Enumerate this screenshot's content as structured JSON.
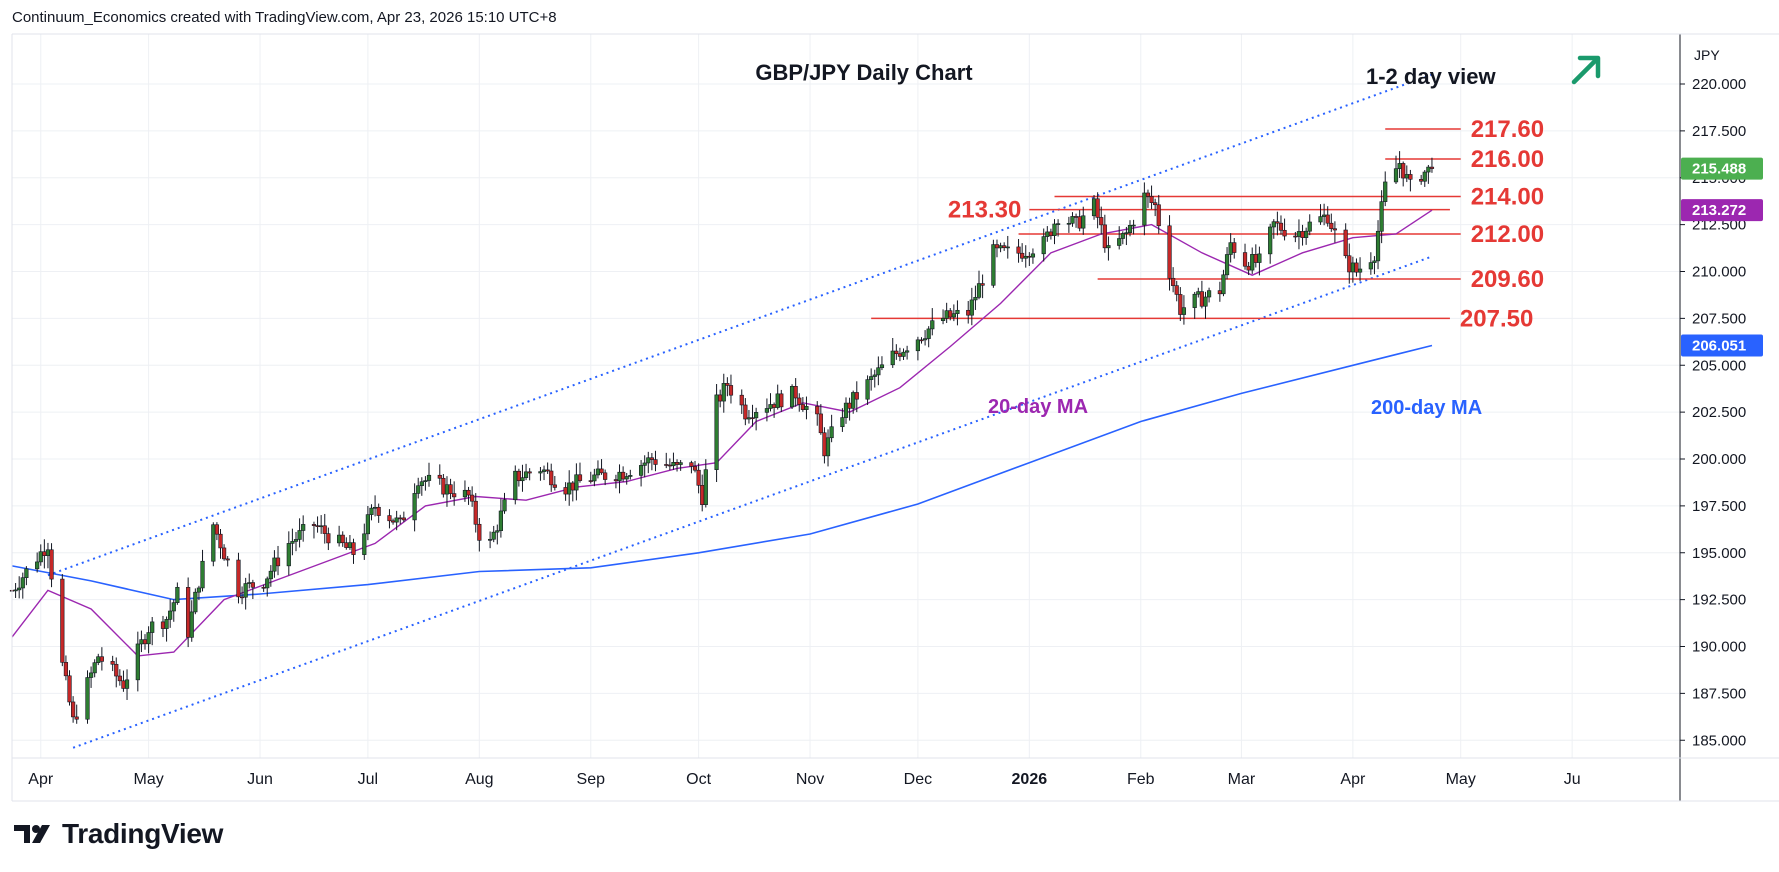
{
  "header": {
    "caption": "Continuum_Economics created with TradingView.com, Apr 23, 2026 15:10 UTC+8"
  },
  "brand": {
    "name": "TradingView"
  },
  "chart_data": {
    "type": "candlestick",
    "title": "GBP/JPY Daily Chart",
    "view_label": "1-2 day view",
    "view_direction": "up",
    "currency_label": "JPY",
    "ylim": [
      184,
      222
    ],
    "y_ticks": [
      "220.000",
      "217.500",
      "215.000",
      "212.500",
      "210.000",
      "207.500",
      "205.000",
      "202.500",
      "200.000",
      "197.500",
      "195.000",
      "192.500",
      "190.000",
      "187.500",
      "185.000"
    ],
    "x_ticks": [
      "Apr",
      "May",
      "Jun",
      "Jul",
      "Aug",
      "Sep",
      "Oct",
      "Nov",
      "Dec",
      "2026",
      "Feb",
      "Mar",
      "Apr",
      "May",
      "Ju"
    ],
    "grid": true,
    "current_price": {
      "label": "215.488",
      "value": 215.488,
      "color": "#4caf50"
    },
    "ma_tags": [
      {
        "label": "213.272",
        "value": 213.272,
        "color": "#9c27b0"
      },
      {
        "label": "206.051",
        "value": 206.051,
        "color": "#2962ff"
      }
    ],
    "levels": [
      {
        "label": "217.60",
        "value": 217.6,
        "kind": "resistance"
      },
      {
        "label": "216.00",
        "value": 216.0,
        "kind": "resistance"
      },
      {
        "label": "214.00",
        "value": 214.0,
        "kind": "support"
      },
      {
        "label": "213.30",
        "value": 213.3,
        "kind": "support"
      },
      {
        "label": "212.00",
        "value": 212.0,
        "kind": "support"
      },
      {
        "label": "209.60",
        "value": 209.6,
        "kind": "support"
      },
      {
        "label": "207.50",
        "value": 207.5,
        "kind": "support"
      }
    ],
    "series": [
      {
        "name": "20-day MA",
        "color": "#9c27b0"
      },
      {
        "name": "200-day MA",
        "color": "#2962ff"
      }
    ],
    "close_path": [
      {
        "date": "2025-03-24",
        "close": 193.0
      },
      {
        "date": "2025-04-03",
        "close": 195.5
      },
      {
        "date": "2025-04-07",
        "close": 189.0
      },
      {
        "date": "2025-04-10",
        "close": 186.0
      },
      {
        "date": "2025-04-17",
        "close": 189.5
      },
      {
        "date": "2025-04-24",
        "close": 188.0
      },
      {
        "date": "2025-05-01",
        "close": 191.0
      },
      {
        "date": "2025-05-06",
        "close": 191.5
      },
      {
        "date": "2025-05-09",
        "close": 192.8
      },
      {
        "date": "2025-05-12",
        "close": 190.8
      },
      {
        "date": "2025-05-15",
        "close": 193.5
      },
      {
        "date": "2025-05-19",
        "close": 196.5
      },
      {
        "date": "2025-05-26",
        "close": 193.0
      },
      {
        "date": "2025-06-02",
        "close": 193.5
      },
      {
        "date": "2025-06-09",
        "close": 195.5
      },
      {
        "date": "2025-06-16",
        "close": 196.5
      },
      {
        "date": "2025-06-23",
        "close": 195.5
      },
      {
        "date": "2025-06-27",
        "close": 195.0
      },
      {
        "date": "2025-07-03",
        "close": 197.5
      },
      {
        "date": "2025-07-10",
        "close": 196.5
      },
      {
        "date": "2025-07-15",
        "close": 199.0
      },
      {
        "date": "2025-07-22",
        "close": 198.5
      },
      {
        "date": "2025-07-29",
        "close": 198.0
      },
      {
        "date": "2025-08-01",
        "close": 196.0
      },
      {
        "date": "2025-08-04",
        "close": 195.5
      },
      {
        "date": "2025-08-11",
        "close": 199.0
      },
      {
        "date": "2025-08-18",
        "close": 199.5
      },
      {
        "date": "2025-08-25",
        "close": 198.5
      },
      {
        "date": "2025-09-01",
        "close": 199.0
      },
      {
        "date": "2025-09-10",
        "close": 199.3
      },
      {
        "date": "2025-09-18",
        "close": 200.0
      },
      {
        "date": "2025-09-25",
        "close": 199.5
      },
      {
        "date": "2025-09-29",
        "close": 199.8
      },
      {
        "date": "2025-10-02",
        "close": 198.0
      },
      {
        "date": "2025-10-06",
        "close": 203.0
      },
      {
        "date": "2025-10-09",
        "close": 204.0
      },
      {
        "date": "2025-10-14",
        "close": 202.5
      },
      {
        "date": "2025-10-21",
        "close": 203.0
      },
      {
        "date": "2025-10-28",
        "close": 203.5
      },
      {
        "date": "2025-11-03",
        "close": 202.0
      },
      {
        "date": "2025-11-05",
        "close": 200.5
      },
      {
        "date": "2025-11-10",
        "close": 202.5
      },
      {
        "date": "2025-11-17",
        "close": 204.0
      },
      {
        "date": "2025-11-24",
        "close": 205.5
      },
      {
        "date": "2025-12-01",
        "close": 206.5
      },
      {
        "date": "2025-12-08",
        "close": 207.5
      },
      {
        "date": "2025-12-15",
        "close": 207.8
      },
      {
        "date": "2025-12-22",
        "close": 211.0
      },
      {
        "date": "2025-12-29",
        "close": 211.0
      },
      {
        "date": "2026-01-05",
        "close": 211.5
      },
      {
        "date": "2026-01-09",
        "close": 213.0
      },
      {
        "date": "2026-01-14",
        "close": 212.5
      },
      {
        "date": "2026-01-19",
        "close": 213.5
      },
      {
        "date": "2026-01-23",
        "close": 211.0
      },
      {
        "date": "2026-01-28",
        "close": 212.0
      },
      {
        "date": "2026-02-02",
        "close": 214.0
      },
      {
        "date": "2026-02-05",
        "close": 213.5
      },
      {
        "date": "2026-02-09",
        "close": 210.0
      },
      {
        "date": "2026-02-12",
        "close": 208.0
      },
      {
        "date": "2026-02-17",
        "close": 208.5
      },
      {
        "date": "2026-02-23",
        "close": 209.0
      },
      {
        "date": "2026-02-26",
        "close": 211.5
      },
      {
        "date": "2026-03-02",
        "close": 210.5
      },
      {
        "date": "2026-03-06",
        "close": 210.5
      },
      {
        "date": "2026-03-10",
        "close": 212.5
      },
      {
        "date": "2026-03-16",
        "close": 212.0
      },
      {
        "date": "2026-03-20",
        "close": 212.5
      },
      {
        "date": "2026-03-25",
        "close": 213.0
      },
      {
        "date": "2026-03-30",
        "close": 210.5
      },
      {
        "date": "2026-04-02",
        "close": 210.0
      },
      {
        "date": "2026-04-07",
        "close": 211.0
      },
      {
        "date": "2026-04-10",
        "close": 214.5
      },
      {
        "date": "2026-04-14",
        "close": 215.8
      },
      {
        "date": "2026-04-17",
        "close": 214.5
      },
      {
        "date": "2026-04-20",
        "close": 215.2
      },
      {
        "date": "2026-04-23",
        "close": 215.488
      }
    ],
    "ma20_path": [
      {
        "date": "2025-03-24",
        "value": 190.5
      },
      {
        "date": "2025-04-03",
        "value": 193.0
      },
      {
        "date": "2025-04-15",
        "value": 192.0
      },
      {
        "date": "2025-04-28",
        "value": 189.5
      },
      {
        "date": "2025-05-08",
        "value": 189.7
      },
      {
        "date": "2025-05-22",
        "value": 192.5
      },
      {
        "date": "2025-06-05",
        "value": 193.5
      },
      {
        "date": "2025-06-19",
        "value": 194.5
      },
      {
        "date": "2025-07-03",
        "value": 195.5
      },
      {
        "date": "2025-07-17",
        "value": 197.5
      },
      {
        "date": "2025-07-31",
        "value": 198.0
      },
      {
        "date": "2025-08-14",
        "value": 197.8
      },
      {
        "date": "2025-08-28",
        "value": 198.5
      },
      {
        "date": "2025-09-11",
        "value": 198.8
      },
      {
        "date": "2025-09-25",
        "value": 199.5
      },
      {
        "date": "2025-10-06",
        "value": 199.8
      },
      {
        "date": "2025-10-17",
        "value": 202.0
      },
      {
        "date": "2025-10-30",
        "value": 203.0
      },
      {
        "date": "2025-11-12",
        "value": 202.5
      },
      {
        "date": "2025-11-26",
        "value": 203.8
      },
      {
        "date": "2025-12-10",
        "value": 206.0
      },
      {
        "date": "2025-12-24",
        "value": 208.3
      },
      {
        "date": "2026-01-07",
        "value": 211.0
      },
      {
        "date": "2026-01-21",
        "value": 212.0
      },
      {
        "date": "2026-02-04",
        "value": 212.5
      },
      {
        "date": "2026-02-18",
        "value": 211.0
      },
      {
        "date": "2026-03-04",
        "value": 209.8
      },
      {
        "date": "2026-03-18",
        "value": 211.0
      },
      {
        "date": "2026-04-01",
        "value": 211.8
      },
      {
        "date": "2026-04-13",
        "value": 212.0
      },
      {
        "date": "2026-04-23",
        "value": 213.272
      }
    ],
    "ma200_path": [
      {
        "date": "2025-03-24",
        "value": 194.3
      },
      {
        "date": "2025-04-15",
        "value": 193.5
      },
      {
        "date": "2025-05-08",
        "value": 192.5
      },
      {
        "date": "2025-06-01",
        "value": 192.8
      },
      {
        "date": "2025-07-01",
        "value": 193.3
      },
      {
        "date": "2025-08-01",
        "value": 194.0
      },
      {
        "date": "2025-09-01",
        "value": 194.2
      },
      {
        "date": "2025-10-01",
        "value": 195.0
      },
      {
        "date": "2025-11-01",
        "value": 196.0
      },
      {
        "date": "2025-12-01",
        "value": 197.6
      },
      {
        "date": "2026-01-01",
        "value": 199.8
      },
      {
        "date": "2026-02-01",
        "value": 202.0
      },
      {
        "date": "2026-03-01",
        "value": 203.5
      },
      {
        "date": "2026-04-01",
        "value": 205.0
      },
      {
        "date": "2026-04-23",
        "value": 206.051
      }
    ],
    "channel": {
      "upper": [
        {
          "date": "2025-04-03",
          "value": 193.8
        },
        {
          "date": "2026-04-23",
          "value": 220.5
        }
      ],
      "lower": [
        {
          "date": "2025-04-10",
          "value": 184.6
        },
        {
          "date": "2026-04-23",
          "value": 210.8
        }
      ]
    }
  }
}
